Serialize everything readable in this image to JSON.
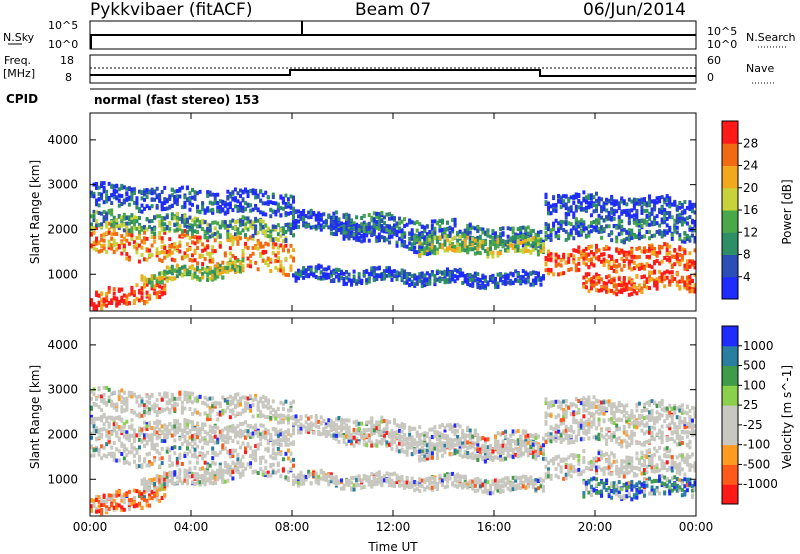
{
  "header": {
    "radar": "Pykkvibaer (fitACF)",
    "beam": "Beam 07",
    "date": "06/Jun/2014"
  },
  "strips": {
    "nsky_label": "N.Sky",
    "nsearch_label": "N.Search",
    "freq_label": "Freq.",
    "freq_unit": "[MHz]",
    "nave_label": "Nave",
    "cpid_label": "CPID",
    "cpid_text": "normal (fast stereo)  153",
    "noise_left_ticks": [
      "10^5",
      "10^0"
    ],
    "noise_right_ticks": [
      "10^5",
      "10^0"
    ],
    "freq_left_ticks": [
      "18",
      "8"
    ],
    "nave_right_ticks": [
      "60",
      "0"
    ]
  },
  "colors": {
    "power_scale": [
      "#1f2bff",
      "#2c4fb7",
      "#2e8f66",
      "#48a84a",
      "#c8d23a",
      "#f2a81c",
      "#f26a12",
      "#ff1a1a"
    ],
    "velocity_scale": [
      "#ff1a1a",
      "#ff5a1a",
      "#ff9a22",
      "#c8c8c0",
      "#c8c8c0",
      "#8bd04a",
      "#3f9a4a",
      "#2a7fa0",
      "#1f2bff"
    ]
  },
  "chart_data": [
    {
      "type": "heatmap",
      "name": "power",
      "xlabel": "Time UT",
      "ylabel": "Slant Range [km]",
      "x_ticks": [
        "00:00",
        "04:00",
        "08:00",
        "12:00",
        "16:00",
        "20:00",
        "00:00"
      ],
      "xlim": [
        0,
        24
      ],
      "y_ticks": [
        1000,
        2000,
        3000,
        4000
      ],
      "ylim": [
        180,
        4600
      ],
      "colorbar_label": "Power [dB]",
      "colorbar_ticks": [
        4,
        8,
        12,
        16,
        20,
        24,
        28
      ],
      "colorbar_range": [
        0,
        30
      ]
    },
    {
      "type": "heatmap",
      "name": "velocity",
      "xlabel": "Time UT",
      "ylabel": "Slant Range [km]",
      "x_ticks": [
        "00:00",
        "04:00",
        "08:00",
        "12:00",
        "16:00",
        "20:00",
        "00:00"
      ],
      "xlim": [
        0,
        24
      ],
      "y_ticks": [
        1000,
        2000,
        3000,
        4000
      ],
      "ylim": [
        180,
        4600
      ],
      "colorbar_label": "Velocity [m s^-1]",
      "colorbar_ticks": [
        "1000",
        "500",
        "100",
        "25",
        "-25",
        "-100",
        "-500",
        "-1000"
      ]
    }
  ]
}
